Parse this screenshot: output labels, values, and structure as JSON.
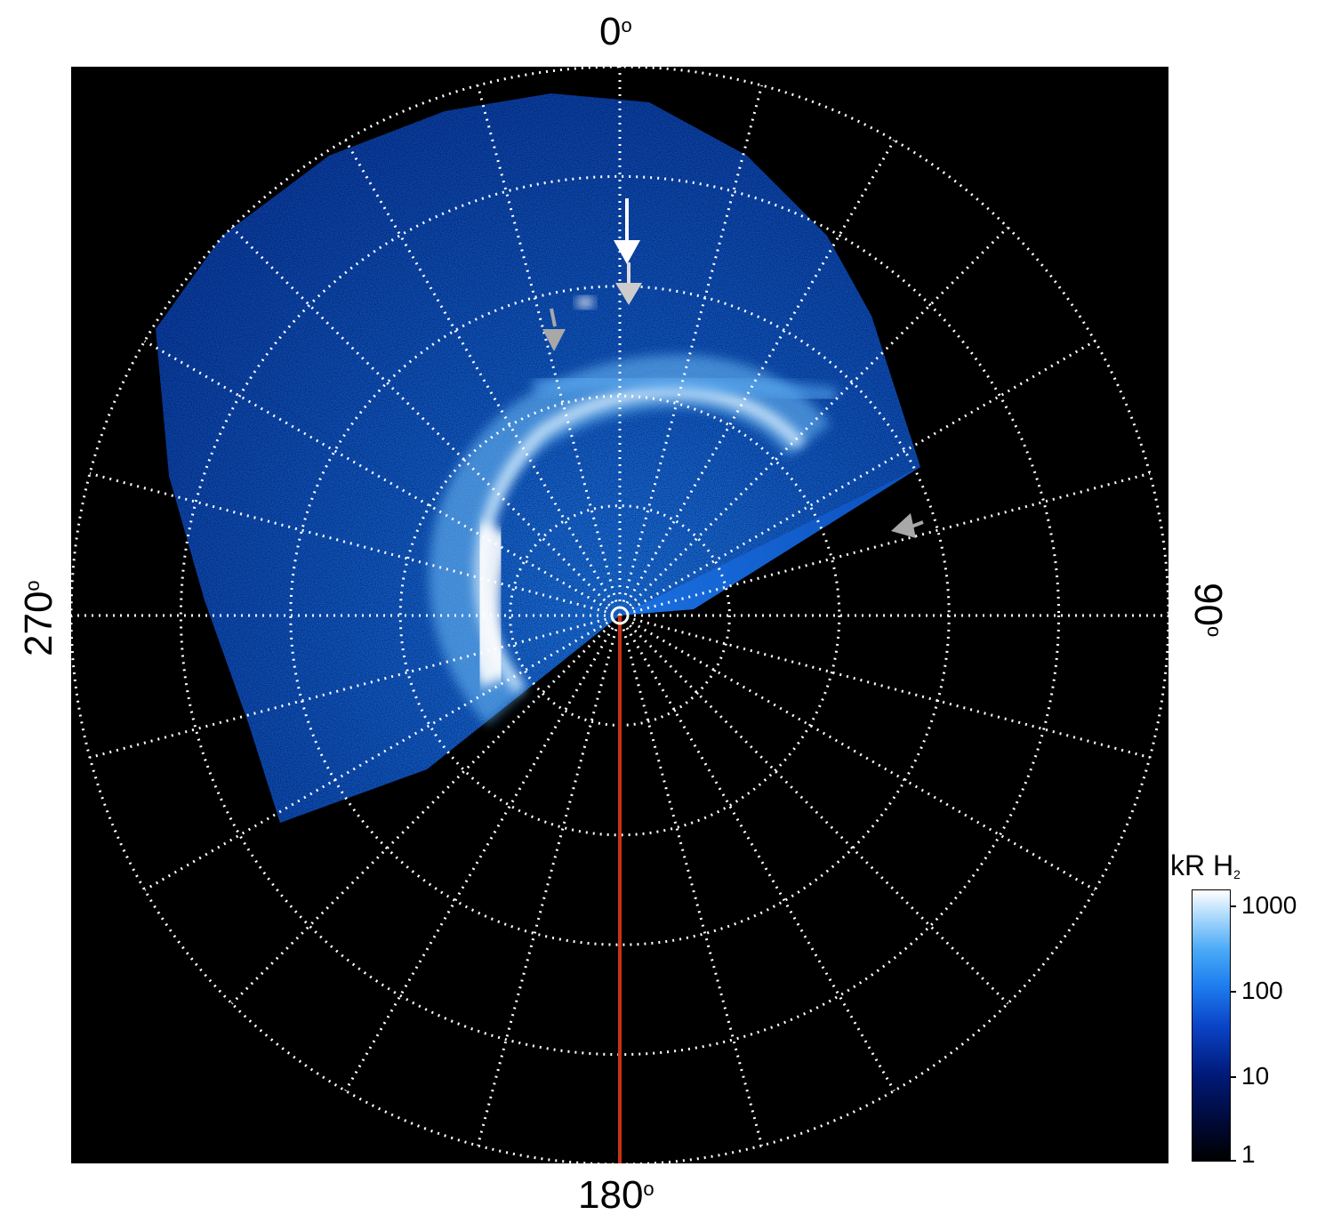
{
  "figure": {
    "angle_labels": {
      "top": "0",
      "right": "90",
      "bottom": "180",
      "left": "270",
      "degree_symbol": "o"
    },
    "colorbar": {
      "title": "kR H",
      "title_subscript": "2",
      "ticks": [
        "1000",
        "100",
        "10",
        "1"
      ],
      "colors": [
        "#000000",
        "#001a7a",
        "#1e7ef0",
        "#ffffff"
      ]
    },
    "grid_color": "#ffffff",
    "marker_line_color": "#c8321a",
    "arrow_colors": {
      "primary": "#ffffff",
      "secondary": "#a8a8a8"
    }
  }
}
